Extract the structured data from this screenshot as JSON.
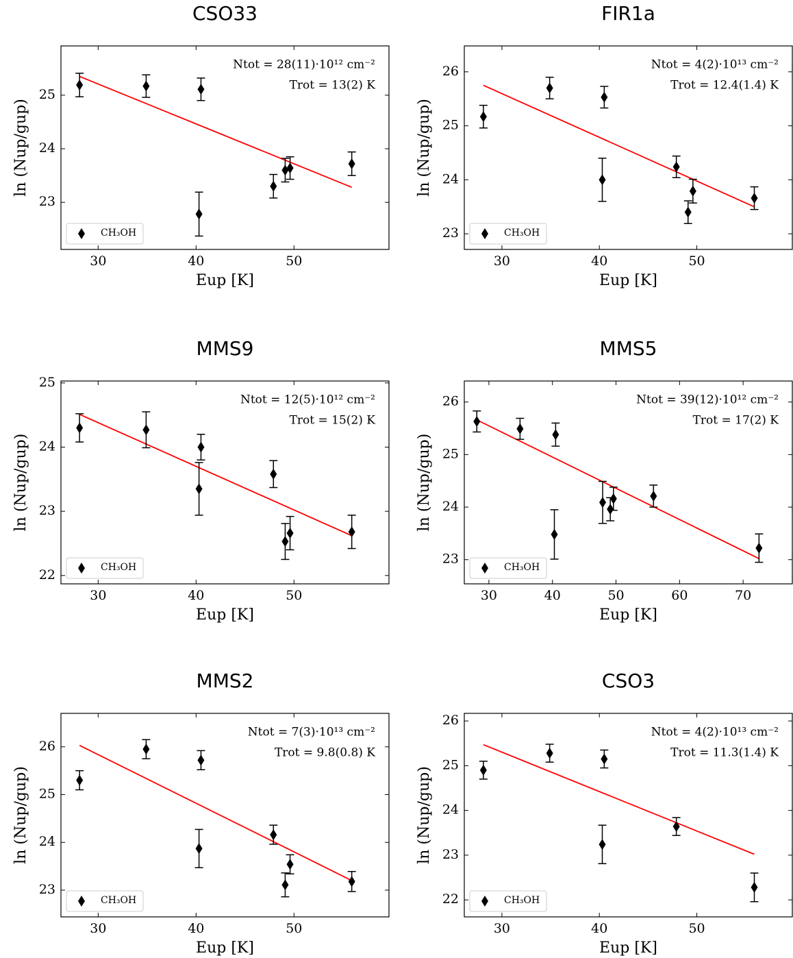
{
  "chart_data": [
    {
      "type": "scatter",
      "title": "CSO33",
      "xlabel": "Eup [K]",
      "ylabel": "ln (Nup/gup)",
      "annotations": [
        "Ntot = 28(11)·10¹² cm⁻²",
        "Trot = 13(2) K"
      ],
      "xlim": [
        26.2,
        59.7
      ],
      "xticks": [
        30,
        40,
        50
      ],
      "ylim": [
        22.12,
        25.92
      ],
      "yticks": [
        23,
        24,
        25
      ],
      "legend": "lower left",
      "series": [
        {
          "name": "CH₃OH",
          "color": "#000000",
          "x": [
            28.1,
            34.9,
            40.5,
            40.3,
            47.9,
            49.1,
            49.6,
            55.9
          ],
          "values": [
            25.19,
            25.17,
            25.11,
            22.78,
            23.3,
            23.6,
            23.64,
            23.72
          ],
          "errors": [
            0.22,
            0.21,
            0.21,
            0.41,
            0.22,
            0.22,
            0.21,
            0.22
          ]
        }
      ],
      "fit": {
        "color": "#ff0000",
        "x": [
          28.1,
          55.9
        ],
        "values": [
          25.35,
          23.28
        ]
      }
    },
    {
      "type": "scatter",
      "title": "FIR1a",
      "xlabel": "Eup [K]",
      "ylabel": "ln (Nup/gup)",
      "annotations": [
        "Ntot = 4(2)·10¹³ cm⁻²",
        "Trot = 12.4(1.4) K"
      ],
      "xlim": [
        26.14,
        59.8
      ],
      "xticks": [
        30,
        40,
        50
      ],
      "ylim": [
        22.71,
        26.48
      ],
      "yticks": [
        23,
        24,
        25,
        26
      ],
      "legend": "lower left",
      "series": [
        {
          "name": "CH₃OH",
          "color": "#000000",
          "x": [
            28.1,
            34.9,
            40.5,
            40.3,
            47.9,
            49.1,
            49.6,
            55.9
          ],
          "values": [
            25.17,
            25.7,
            25.53,
            24.0,
            24.24,
            23.4,
            23.79,
            23.66
          ],
          "errors": [
            0.21,
            0.2,
            0.2,
            0.4,
            0.2,
            0.21,
            0.22,
            0.21
          ]
        }
      ],
      "fit": {
        "color": "#ff0000",
        "x": [
          28.1,
          55.9
        ],
        "values": [
          25.75,
          23.5
        ]
      }
    },
    {
      "type": "scatter",
      "title": "MMS9",
      "xlabel": "Eup [K]",
      "ylabel": "ln (Nup/gup)",
      "annotations": [
        "Ntot = 12(5)·10¹² cm⁻²",
        "Trot = 15(2) K"
      ],
      "xlim": [
        26.2,
        59.7
      ],
      "xticks": [
        30,
        40,
        50
      ],
      "ylim": [
        21.87,
        25.03
      ],
      "yticks": [
        22,
        23,
        24,
        25
      ],
      "legend": "lower left",
      "series": [
        {
          "name": "CH₃OH",
          "color": "#000000",
          "x": [
            28.1,
            34.9,
            40.5,
            40.3,
            47.9,
            49.1,
            49.6,
            55.9
          ],
          "values": [
            24.3,
            24.27,
            24.0,
            23.35,
            23.58,
            22.53,
            22.66,
            22.68
          ],
          "errors": [
            0.22,
            0.28,
            0.2,
            0.41,
            0.21,
            0.28,
            0.26,
            0.26
          ]
        }
      ],
      "fit": {
        "color": "#ff0000",
        "x": [
          28.1,
          55.9
        ],
        "values": [
          24.51,
          22.62
        ]
      }
    },
    {
      "type": "scatter",
      "title": "MMS5",
      "xlabel": "Eup [K]",
      "ylabel": "ln (Nup/gup)",
      "annotations": [
        "Ntot = 39(12)·10¹² cm⁻²",
        "Trot = 17(2) K"
      ],
      "xlim": [
        26.13,
        77.74
      ],
      "xticks": [
        30,
        40,
        50,
        60,
        70
      ],
      "ylim": [
        22.54,
        26.4
      ],
      "yticks": [
        23,
        24,
        25,
        26
      ],
      "legend": "lower left",
      "series": [
        {
          "name": "CH₃OH",
          "color": "#000000",
          "x": [
            28.1,
            34.9,
            40.5,
            40.3,
            47.9,
            49.1,
            49.6,
            55.9,
            72.5
          ],
          "values": [
            25.63,
            25.49,
            25.38,
            23.48,
            24.09,
            23.96,
            24.16,
            24.21,
            23.22
          ],
          "errors": [
            0.2,
            0.2,
            0.22,
            0.47,
            0.4,
            0.22,
            0.22,
            0.21,
            0.27
          ]
        }
      ],
      "fit": {
        "color": "#ff0000",
        "x": [
          28.1,
          72.5
        ],
        "values": [
          25.66,
          23.02
        ]
      }
    },
    {
      "type": "scatter",
      "title": "MMS2",
      "xlabel": "Eup [K]",
      "ylabel": "ln (Nup/gup)",
      "annotations": [
        "Ntot = 7(3)·10¹³ cm⁻²",
        "Trot = 9.8(0.8) K"
      ],
      "xlim": [
        26.2,
        59.7
      ],
      "xticks": [
        30,
        40,
        50
      ],
      "ylim": [
        22.44,
        26.7
      ],
      "yticks": [
        23,
        24,
        25,
        26
      ],
      "legend": "lower left",
      "series": [
        {
          "name": "CH₃OH",
          "color": "#000000",
          "x": [
            28.1,
            34.9,
            40.5,
            40.3,
            47.9,
            49.1,
            49.6,
            55.9
          ],
          "values": [
            25.3,
            25.95,
            25.72,
            23.87,
            24.16,
            23.11,
            23.54,
            23.18
          ],
          "errors": [
            0.2,
            0.2,
            0.2,
            0.4,
            0.2,
            0.25,
            0.2,
            0.21
          ]
        }
      ],
      "fit": {
        "color": "#ff0000",
        "x": [
          28.1,
          55.9
        ],
        "values": [
          26.03,
          23.2
        ]
      }
    },
    {
      "type": "scatter",
      "title": "CSO3",
      "xlabel": "Eup [K]",
      "ylabel": "ln (Nup/gup)",
      "annotations": [
        "Ntot = 4(2)·10¹³ cm⁻²",
        "Trot = 11.3(1.4) K"
      ],
      "xlim": [
        26.14,
        59.8
      ],
      "xticks": [
        30,
        40,
        50
      ],
      "ylim": [
        21.62,
        26.17
      ],
      "yticks": [
        22,
        23,
        24,
        25,
        26
      ],
      "legend": "lower left",
      "series": [
        {
          "name": "CH₃OH",
          "color": "#000000",
          "x": [
            28.1,
            34.9,
            40.5,
            40.3,
            47.9,
            55.9
          ],
          "values": [
            24.9,
            25.28,
            25.15,
            23.24,
            23.64,
            22.28
          ],
          "errors": [
            0.2,
            0.2,
            0.2,
            0.43,
            0.2,
            0.32
          ]
        }
      ],
      "fit": {
        "color": "#ff0000",
        "x": [
          28.1,
          55.9
        ],
        "values": [
          25.47,
          23.02
        ]
      }
    }
  ]
}
